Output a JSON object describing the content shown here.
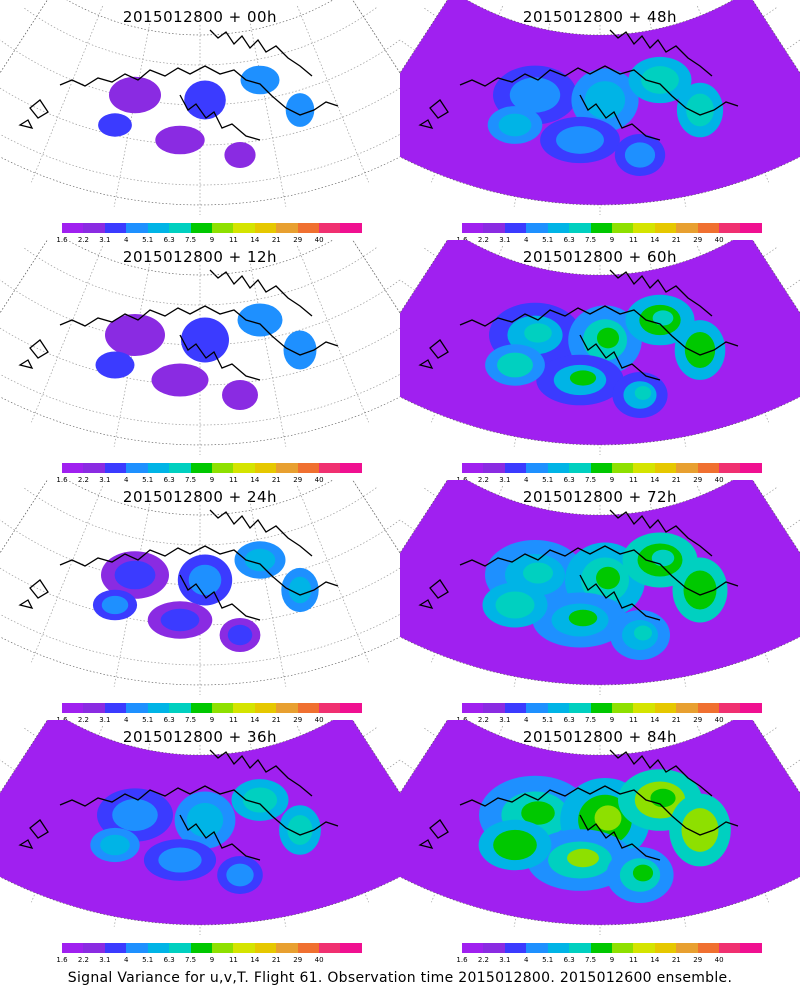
{
  "panels": [
    {
      "title": "2015012800 + 00h",
      "level": 0.15
    },
    {
      "title": "2015012800 + 48h",
      "level": 0.55
    },
    {
      "title": "2015012800 + 12h",
      "level": 0.25
    },
    {
      "title": "2015012800 + 60h",
      "level": 0.65
    },
    {
      "title": "2015012800 + 24h",
      "level": 0.35
    },
    {
      "title": "2015012800 + 72h",
      "level": 0.75
    },
    {
      "title": "2015012800 + 36h",
      "level": 0.45
    },
    {
      "title": "2015012800 + 84h",
      "level": 0.9
    }
  ],
  "colorbar": {
    "labels": [
      "1.6",
      "2.2",
      "3.1",
      "4",
      "5.1",
      "6.3",
      "7.5",
      "9",
      "11",
      "14",
      "21",
      "29",
      "40"
    ],
    "colors": [
      "#a020f0",
      "#8a2be2",
      "#3b3bff",
      "#1e90ff",
      "#00b4e6",
      "#00d0c0",
      "#00c800",
      "#8ee000",
      "#d4e400",
      "#e6c800",
      "#e8a030",
      "#f07030",
      "#f03070",
      "#f01090"
    ]
  },
  "footer": "Signal Variance for u,v,T. Flight 61. Observation time 2015012800. 2015012600 ensemble."
}
